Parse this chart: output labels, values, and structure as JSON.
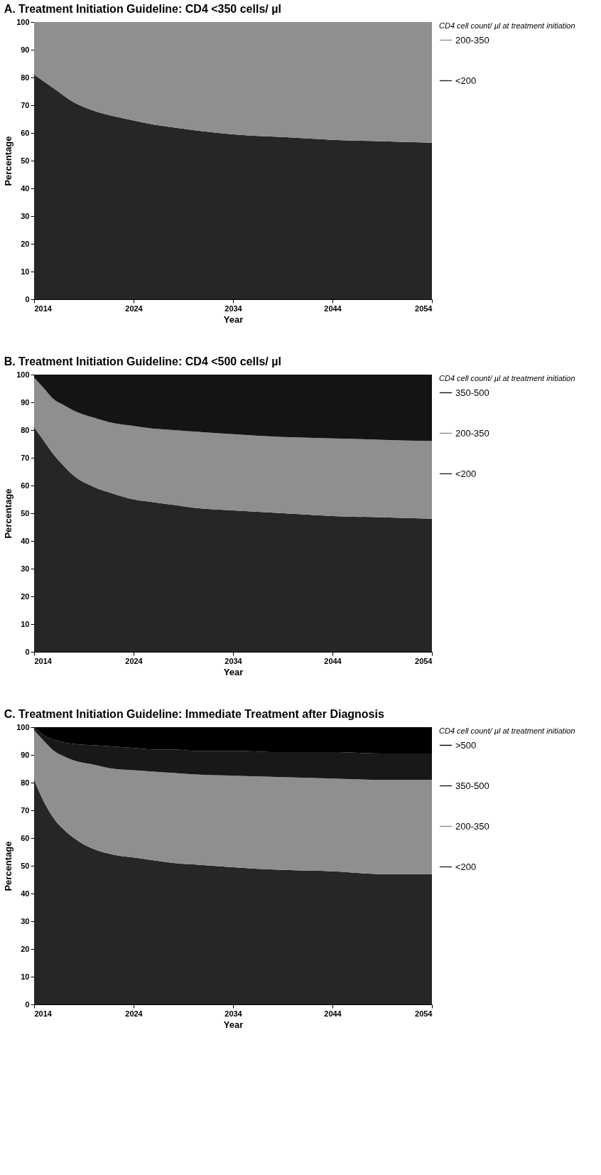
{
  "chart_data": [
    {
      "type": "area",
      "stacked": true,
      "title": "A. Treatment Initiation Guideline: CD4 <350 cells/ µl",
      "xlabel": "Year",
      "ylabel": "Percentage",
      "legend_title": "CD4 cell count/ µl at treatment initiation",
      "legend": "right",
      "grid": false,
      "x": [
        2014,
        2016,
        2018,
        2020,
        2022,
        2024,
        2026,
        2028,
        2030,
        2034,
        2039,
        2044,
        2049,
        2054
      ],
      "xlim": [
        2014,
        2054
      ],
      "xticks": [
        2014,
        2024,
        2034,
        2044,
        2054
      ],
      "ylim": [
        0,
        100
      ],
      "yticks": [
        0,
        10,
        20,
        30,
        40,
        50,
        60,
        70,
        80,
        90,
        100
      ],
      "series": [
        {
          "name": "<200",
          "color": "#262626",
          "values": [
            81,
            76,
            71,
            68,
            66,
            64.5,
            63,
            62,
            61,
            59.5,
            58.5,
            57.5,
            57,
            56.5
          ]
        },
        {
          "name": "200-350",
          "color": "#8f8f8f",
          "values": [
            19,
            24,
            29,
            32,
            34,
            35.5,
            37,
            38,
            39,
            40.5,
            41.5,
            42.5,
            43,
            43.5
          ]
        }
      ]
    },
    {
      "type": "area",
      "stacked": true,
      "title": "B. Treatment Initiation Guideline: CD4 <500 cells/ µl",
      "xlabel": "Year",
      "ylabel": "Percentage",
      "legend_title": "CD4 cell count/ µl at treatment initiation",
      "legend": "right",
      "grid": false,
      "x": [
        2014,
        2015,
        2016,
        2017,
        2018,
        2020,
        2022,
        2024,
        2026,
        2028,
        2030,
        2034,
        2039,
        2044,
        2049,
        2054
      ],
      "xlim": [
        2014,
        2054
      ],
      "xticks": [
        2014,
        2024,
        2034,
        2044,
        2054
      ],
      "ylim": [
        0,
        100
      ],
      "yticks": [
        0,
        10,
        20,
        30,
        40,
        50,
        60,
        70,
        80,
        90,
        100
      ],
      "series": [
        {
          "name": "<200",
          "color": "#262626",
          "values": [
            81,
            76,
            71,
            67,
            63.5,
            59.5,
            57,
            55,
            54,
            53,
            52,
            51,
            50,
            49,
            48.5,
            48
          ]
        },
        {
          "name": "200-350",
          "color": "#8f8f8f",
          "values": [
            18,
            19,
            20,
            22,
            23.5,
            25,
            25.5,
            26.5,
            26.5,
            27,
            27.5,
            27.5,
            27.5,
            28,
            28,
            28
          ]
        },
        {
          "name": "350-500",
          "color": "#141414",
          "values": [
            1,
            5,
            9,
            11,
            13,
            15.5,
            17.5,
            18.5,
            19.5,
            20,
            20.5,
            21.5,
            22.5,
            23,
            23.5,
            24
          ]
        }
      ]
    },
    {
      "type": "area",
      "stacked": true,
      "title": "C. Treatment Initiation Guideline: Immediate Treatment after Diagnosis",
      "xlabel": "Year",
      "ylabel": "Percentage",
      "legend_title": "CD4 cell count/ µl at treatment initiation",
      "legend": "right",
      "grid": false,
      "x": [
        2014,
        2015,
        2016,
        2017,
        2018,
        2020,
        2022,
        2024,
        2026,
        2028,
        2030,
        2034,
        2039,
        2044,
        2049,
        2054
      ],
      "xlim": [
        2014,
        2054
      ],
      "xticks": [
        2014,
        2024,
        2034,
        2044,
        2054
      ],
      "ylim": [
        0,
        100
      ],
      "yticks": [
        0,
        10,
        20,
        30,
        40,
        50,
        60,
        70,
        80,
        90,
        100
      ],
      "series": [
        {
          "name": "<200",
          "color": "#262626",
          "values": [
            81,
            73,
            67,
            63,
            60,
            56,
            54,
            53,
            52,
            51,
            50.5,
            49.5,
            48.5,
            48,
            47,
            47
          ]
        },
        {
          "name": "200-350",
          "color": "#8f8f8f",
          "values": [
            18,
            22,
            24.5,
            26.5,
            28,
            30.5,
            31,
            31.5,
            32,
            32.5,
            32.5,
            33,
            33.5,
            33.5,
            34,
            34
          ]
        },
        {
          "name": "350-500",
          "color": "#181818",
          "values": [
            1,
            2,
            4,
            5,
            6,
            7,
            8,
            8,
            8,
            8.5,
            8.5,
            9,
            9,
            9.5,
            9.5,
            9.5
          ]
        },
        {
          "name": ">500",
          "color": "#000000",
          "values": [
            0,
            3,
            4.5,
            5.5,
            6,
            6.5,
            7,
            7.5,
            8,
            8,
            8.5,
            8.5,
            9,
            9,
            9.5,
            9.5
          ]
        }
      ]
    }
  ]
}
